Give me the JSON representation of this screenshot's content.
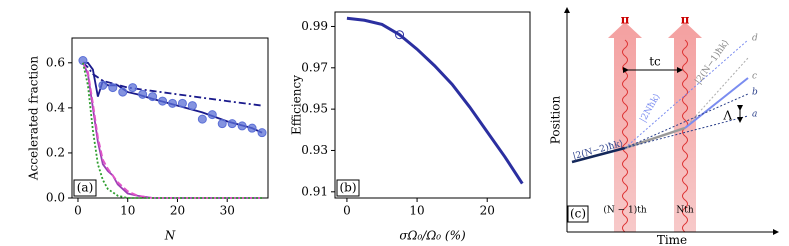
{
  "chart_data": [
    {
      "type": "line",
      "panel": "(a)",
      "xlabel": "N",
      "ylabel": "Accelerated fraction",
      "xlim": [
        -1.2,
        38.2
      ],
      "xticks": [
        0,
        10,
        20,
        30
      ],
      "ylim": [
        0,
        0.71
      ],
      "yticks": [
        {
          "value": 0,
          "label": "0.0"
        },
        0.2,
        0.4,
        0.6
      ],
      "series": [
        {
          "style": "dashdot",
          "color": "#1a1a8c",
          "x": [
            1,
            2,
            3,
            5,
            10,
            20,
            30,
            37
          ],
          "values": [
            0.6,
            0.58,
            0.55,
            0.52,
            0.49,
            0.46,
            0.43,
            0.41
          ]
        },
        {
          "style": "solid",
          "color": "#1a1a8c",
          "x": [
            1,
            2,
            3,
            4,
            5,
            6,
            8,
            10,
            12,
            15,
            20,
            25,
            30,
            35,
            37
          ],
          "values": [
            0.6,
            0.6,
            0.57,
            0.45,
            0.52,
            0.5,
            0.5,
            0.47,
            0.46,
            0.44,
            0.41,
            0.38,
            0.34,
            0.31,
            0.29
          ]
        },
        {
          "style": "markers",
          "color": "#5b6fd6",
          "x": [
            1,
            5,
            7,
            9,
            11,
            13,
            15,
            17,
            19,
            21,
            23,
            25,
            27,
            29,
            31,
            33,
            35,
            37
          ],
          "values": [
            0.61,
            0.5,
            0.49,
            0.47,
            0.49,
            0.46,
            0.45,
            0.43,
            0.42,
            0.42,
            0.41,
            0.35,
            0.37,
            0.33,
            0.33,
            0.32,
            0.31,
            0.29
          ]
        },
        {
          "style": "solid",
          "color": "#9b3fb5",
          "x": [
            1,
            2,
            3,
            4,
            5,
            6,
            7,
            8,
            10,
            12,
            15,
            37
          ],
          "values": [
            0.6,
            0.55,
            0.4,
            0.25,
            0.15,
            0.12,
            0.1,
            0.06,
            0.02,
            0.01,
            0,
            0
          ]
        },
        {
          "style": "dashed",
          "color": "#e055c8",
          "x": [
            1,
            2,
            3,
            4,
            5,
            6,
            7,
            8,
            10,
            12,
            15,
            37
          ],
          "values": [
            0.6,
            0.56,
            0.42,
            0.27,
            0.17,
            0.13,
            0.1,
            0.07,
            0.03,
            0.01,
            0,
            0
          ]
        },
        {
          "style": "dotted",
          "color": "#2e9e2e",
          "x": [
            1,
            2,
            3,
            4,
            5,
            6,
            8,
            10,
            37
          ],
          "values": [
            0.6,
            0.5,
            0.3,
            0.15,
            0.08,
            0.04,
            0.01,
            0,
            0
          ]
        }
      ]
    },
    {
      "type": "line",
      "panel": "(b)",
      "xlabel": "σΩ₀/Ω₀ (%)",
      "ylabel": "Efficiency",
      "xlim": [
        -1.7,
        26.1
      ],
      "xticks": [
        0,
        10,
        20
      ],
      "ylim": [
        0.907,
        0.997
      ],
      "yticks": [
        0.91,
        0.93,
        0.95,
        0.97,
        0.99
      ],
      "series": [
        {
          "style": "solid",
          "color": "#2b2fa0",
          "x": [
            0,
            2.5,
            5,
            7.5,
            10,
            12.5,
            15,
            17.5,
            20,
            22.5,
            25
          ],
          "values": [
            0.994,
            0.993,
            0.991,
            0.986,
            0.979,
            0.971,
            0.962,
            0.951,
            0.939,
            0.927,
            0.914
          ]
        },
        {
          "style": "open-marker",
          "color": "#2b2fa0",
          "x": [
            7.5
          ],
          "values": [
            0.986
          ]
        }
      ]
    }
  ],
  "diagram": {
    "panel": "(c)",
    "xlabel": "Time",
    "ylabel": "Position",
    "pulse_left": "π",
    "pulse_right": "π",
    "interval": "tc",
    "state_low": "|2(N−2)ħk⟩",
    "state_mid": "|2Nħk⟩",
    "state_high": "|2(N−1)ħk⟩",
    "line_d": "d",
    "line_c": "c",
    "line_b": "b",
    "line_a": "a",
    "gap": "Λ",
    "pulse_left_label": "(N − 1)th",
    "pulse_right_label": "Nth"
  }
}
